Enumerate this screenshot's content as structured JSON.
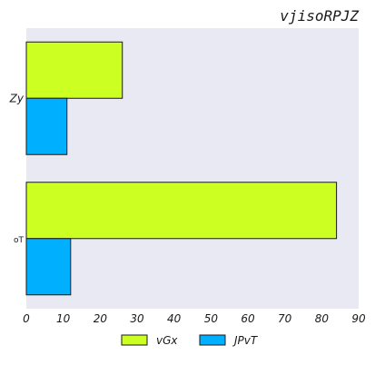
{
  "chart_data": {
    "type": "bar",
    "orientation": "horizontal",
    "title": "vjisoRPJZ",
    "categories": [
      "Zy",
      "oT"
    ],
    "series": [
      {
        "name": "vGx",
        "values": [
          26,
          84
        ],
        "color": "#ccff22"
      },
      {
        "name": "JPvT",
        "values": [
          11,
          12
        ],
        "color": "#00b0ff"
      }
    ],
    "xlim": [
      0,
      90
    ],
    "xticks": [
      0,
      10,
      20,
      30,
      40,
      50,
      60,
      70,
      80,
      90
    ],
    "xlabel": "",
    "ylabel": "",
    "grid": false,
    "legend_position": "bottom",
    "background_color": "#e9e9f3"
  }
}
